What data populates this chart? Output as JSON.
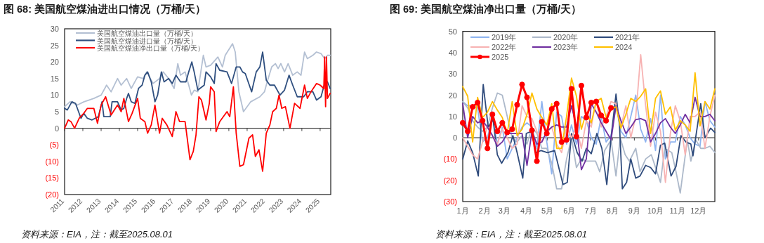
{
  "chart_data": [
    {
      "type": "line",
      "title": "图 68: 美国航空煤油进出口情况（万桶/天）",
      "xlim": [
        "2011-01-01",
        "2025-08-01"
      ],
      "xticks": [
        "2011",
        "2012",
        "2013",
        "2014",
        "2015",
        "2016",
        "2017",
        "2018",
        "2019",
        "2020",
        "2021",
        "2022",
        "2023",
        "2024",
        "2025"
      ],
      "ylim": [
        -20,
        30
      ],
      "yticks": [
        {
          "value": -20,
          "label": "(20)"
        },
        {
          "value": -15,
          "label": "(15)"
        },
        {
          "value": -10,
          "label": "(10)"
        },
        {
          "value": -5,
          "label": "(5)"
        },
        0,
        5,
        10,
        15,
        20,
        25,
        30
      ],
      "legend": "top left",
      "annotations": [
        "资料来源：EIA，注：截至2025.08.01"
      ],
      "series": [
        {
          "name": "美国航空煤油出口量（万桶/天）",
          "color": "#b4c0d3",
          "x": [
            "2011-01-01",
            "2011-04-20",
            "2011-09-13",
            "2012-01-26",
            "2012-08-08",
            "2013-01-01",
            "2013-04-20",
            "2013-07-20",
            "2013-11-25",
            "2014-02-06",
            "2014-05-27",
            "2014-08-26",
            "2015-01-01",
            "2015-04-20",
            "2015-07-02",
            "2015-11-07",
            "2016-03-15",
            "2016-05-27",
            "2016-09-13",
            "2017-01-01",
            "2017-03-15",
            "2017-05-08",
            "2017-08-08",
            "2017-12-14",
            "2018-02-06",
            "2018-04-20",
            "2018-08-08",
            "2018-10-01",
            "2019-01-01",
            "2019-05-27",
            "2019-08-26",
            "2019-10-20",
            "2020-03-15",
            "2020-05-08",
            "2020-07-20",
            "2020-10-20",
            "2021-03-15",
            "2021-09-13",
            "2021-12-14",
            "2022-02-06",
            "2022-05-08",
            "2022-07-20",
            "2022-09-13",
            "2022-11-07",
            "2023-01-19",
            "2023-04-01",
            "2023-07-02",
            "2023-10-01",
            "2023-12-14",
            "2024-02-24",
            "2024-04-20",
            "2024-08-08",
            "2024-10-20",
            "2025-01-19",
            "2025-04-01",
            "2025-05-27",
            "2025-07-20"
          ],
          "values": [
            6.5,
            8,
            7,
            8,
            9,
            10,
            13,
            11,
            15,
            13,
            15,
            12,
            15.5,
            15,
            17,
            13.5,
            15,
            17,
            15,
            12,
            19.5,
            16,
            17,
            10,
            11.5,
            11,
            22,
            18.5,
            19,
            21.5,
            18.5,
            22,
            25.5,
            23,
            11,
            5,
            8,
            9.5,
            11,
            14,
            18.5,
            19.5,
            18,
            19.5,
            17,
            19.5,
            16,
            17,
            16,
            23,
            21,
            22,
            23,
            22.5,
            21,
            22,
            22
          ]
        },
        {
          "name": "美国航空煤油进口量（万桶/天）",
          "color": "#2f4f7f",
          "x": [
            "2011-01-01",
            "2011-02-24",
            "2011-05-27",
            "2011-08-08",
            "2011-11-25",
            "2012-01-19",
            "2012-04-01",
            "2012-07-02",
            "2012-11-07",
            "2013-01-19",
            "2013-02-24",
            "2013-07-02",
            "2013-08-08",
            "2013-11-25",
            "2014-02-06",
            "2014-04-01",
            "2014-05-27",
            "2014-07-02",
            "2014-08-26",
            "2014-11-07",
            "2015-01-19",
            "2015-04-01",
            "2015-05-27",
            "2015-07-20",
            "2015-10-01",
            "2015-12-14",
            "2016-02-06",
            "2016-04-20",
            "2016-06-14",
            "2016-09-13",
            "2016-11-25",
            "2017-02-06",
            "2017-05-08",
            "2017-08-26",
            "2017-10-20",
            "2017-12-21",
            "2018-02-06",
            "2018-04-20",
            "2018-08-26",
            "2018-10-01",
            "2019-01-01",
            "2019-03-15",
            "2019-04-20",
            "2019-07-02",
            "2019-11-25",
            "2020-02-24",
            "2020-05-27",
            "2020-08-08",
            "2020-10-01",
            "2020-11-25",
            "2021-04-01",
            "2021-07-02",
            "2021-09-13",
            "2021-11-07",
            "2022-01-19",
            "2022-04-01",
            "2022-07-02",
            "2022-10-20",
            "2023-01-19",
            "2023-04-20",
            "2023-07-02",
            "2023-10-01",
            "2024-02-06",
            "2024-04-20",
            "2024-08-08",
            "2024-10-20",
            "2025-01-19",
            "2025-04-01",
            "2025-05-27",
            "2025-07-20"
          ],
          "values": [
            6,
            5.5,
            8,
            7.5,
            3,
            4.5,
            3,
            2.5,
            3.5,
            8,
            3.5,
            3.5,
            8,
            8,
            5.5,
            6,
            9,
            10.5,
            8,
            7.5,
            12,
            13,
            16,
            17,
            14,
            8,
            10,
            17,
            14,
            15,
            13.5,
            16,
            14,
            14,
            17,
            20,
            17,
            11.5,
            13,
            17,
            15.5,
            13.5,
            19.5,
            17.5,
            17,
            13.5,
            18.5,
            18.5,
            17,
            16.5,
            11,
            17,
            18.5,
            23,
            14.5,
            13,
            13,
            10,
            11.5,
            16,
            13,
            9.5,
            9.5,
            11,
            11,
            8.5,
            9.5,
            13.5,
            14,
            12
          ]
        },
        {
          "name": "美国航空煤油净出口量（万桶/天）",
          "color": "#ff0000",
          "x": [
            "2011-01-01",
            "2011-03-15",
            "2011-05-08",
            "2011-07-20",
            "2011-10-20",
            "2012-01-19",
            "2012-04-01",
            "2012-08-08",
            "2012-10-20",
            "2013-01-01",
            "2013-04-01",
            "2013-07-20",
            "2013-11-25",
            "2014-02-06",
            "2014-04-01",
            "2014-07-02",
            "2014-09-13",
            "2015-01-01",
            "2015-02-24",
            "2015-05-27",
            "2015-07-20",
            "2015-10-01",
            "2015-12-14",
            "2016-03-15",
            "2016-05-08",
            "2016-08-08",
            "2016-11-25",
            "2017-02-06",
            "2017-04-20",
            "2017-08-08",
            "2017-11-14",
            "2018-01-19",
            "2018-03-15",
            "2018-05-12",
            "2018-07-02",
            "2018-10-01",
            "2018-12-06",
            "2019-01-01",
            "2019-03-15",
            "2019-04-20",
            "2019-07-02",
            "2019-11-25",
            "2020-01-19",
            "2020-04-01",
            "2020-05-27",
            "2020-08-08",
            "2020-10-20",
            "2021-02-06",
            "2021-04-20",
            "2021-06-14",
            "2021-08-26",
            "2021-11-07",
            "2022-01-19",
            "2022-04-01",
            "2022-05-27",
            "2022-08-08",
            "2022-10-01",
            "2022-11-25",
            "2023-02-06",
            "2023-05-08",
            "2023-08-08",
            "2023-11-25",
            "2024-02-24",
            "2024-04-20",
            "2024-07-02",
            "2024-10-20",
            "2025-01-01",
            "2025-03-15",
            "2025-04-01",
            "2025-04-20",
            "2025-05-08",
            "2025-05-27",
            "2025-07-20"
          ],
          "values": [
            0,
            2.5,
            2,
            0,
            3,
            4.5,
            6,
            6,
            1.5,
            7,
            9.5,
            4,
            7,
            5,
            9,
            2,
            4.5,
            9,
            3,
            2,
            -1.5,
            1,
            7,
            -1.5,
            3,
            1,
            -2.5,
            5,
            2,
            2,
            -9.5,
            -7,
            -2,
            9.5,
            8.5,
            2.5,
            7.5,
            12.5,
            11,
            -1,
            2,
            5,
            3.5,
            12.5,
            -1.5,
            -11.5,
            -11,
            -3,
            -2,
            -8.5,
            -6.5,
            -13,
            -1.5,
            1,
            5,
            6,
            10,
            6,
            6.5,
            0,
            7.5,
            6,
            13,
            9,
            11,
            13.5,
            13,
            12,
            21.5,
            6.5,
            21.5,
            9,
            10.5
          ]
        }
      ]
    },
    {
      "type": "line",
      "title": "图 69: 美国航空煤油净出口量（万桶/天）",
      "x": [
        "--01-01",
        "--01-08",
        "--01-15",
        "--01-22",
        "--01-29",
        "--02-05",
        "--02-12",
        "--02-19",
        "--02-26",
        "--03-05",
        "--03-12",
        "--03-19",
        "--03-26",
        "--04-02",
        "--04-09",
        "--04-16",
        "--04-23",
        "--04-30",
        "--05-07",
        "--05-14",
        "--05-21",
        "--05-28",
        "--06-04",
        "--06-11",
        "--06-18",
        "--06-25",
        "--07-02",
        "--07-09",
        "--07-16",
        "--07-23",
        "--07-30",
        "--08-06",
        "--08-13",
        "--08-20",
        "--08-27",
        "--09-03",
        "--09-10",
        "--09-17",
        "--09-24",
        "--10-01",
        "--10-08",
        "--10-15",
        "--10-22",
        "--10-29",
        "--11-05",
        "--11-12",
        "--11-19",
        "--11-26",
        "--12-03",
        "--12-10",
        "--12-17",
        "--12-24"
      ],
      "xlim": [
        "--01-01",
        "--12-24"
      ],
      "xticks": [
        {
          "value": "--01-01",
          "label": "1月"
        },
        {
          "value": "--02-01",
          "label": "2月"
        },
        {
          "value": "--03-01",
          "label": "3月"
        },
        {
          "value": "--04-01",
          "label": "4月"
        },
        {
          "value": "--05-01",
          "label": "5月"
        },
        {
          "value": "--06-01",
          "label": "6月"
        },
        {
          "value": "--07-01",
          "label": "7月"
        },
        {
          "value": "--08-01",
          "label": "8月"
        },
        {
          "value": "--09-01",
          "label": "9月"
        },
        {
          "value": "--10-01",
          "label": "10月"
        },
        {
          "value": "--11-01",
          "label": "11月"
        },
        {
          "value": "--12-01",
          "label": "12月"
        }
      ],
      "ylim": [
        -30,
        50
      ],
      "yticks": [
        {
          "value": -30,
          "label": "(30)"
        },
        {
          "value": -20,
          "label": "(20)"
        },
        {
          "value": -10,
          "label": "(10)"
        },
        0,
        10,
        20,
        30,
        40,
        50
      ],
      "legend": "top left",
      "annotations": [
        "资料来源：EIA，注：截至2025.08.01"
      ],
      "series": [
        {
          "name": "2019年",
          "color": "#8fb4f0",
          "values": [
            17,
            15,
            15,
            14,
            -2,
            0,
            10,
            -3,
            5,
            -10,
            -5,
            0,
            5,
            7,
            5,
            -5,
            17,
            -2,
            -17,
            12,
            10,
            -3,
            6,
            -3,
            10,
            8,
            0,
            -3,
            10,
            -2,
            1,
            15,
            3,
            0,
            10,
            20,
            4,
            -2,
            9,
            -6,
            20,
            -10,
            -2,
            -2,
            10,
            6,
            0,
            -3,
            -4,
            17,
            8,
            5
          ]
        },
        {
          "name": "2020年",
          "color": "#adb9ca",
          "x": [
            "--01-01",
            "--01-08",
            "--01-15",
            "--01-22",
            "--01-29",
            "--02-05",
            "--02-12",
            "--02-19",
            "--02-26",
            "--03-05",
            "--03-12",
            "--03-19",
            "--03-26",
            "--04-02",
            "--04-09",
            "--04-16",
            "--04-23",
            "--04-30",
            "--05-07",
            "--05-14",
            "--05-21",
            "--05-28",
            "--06-04",
            "--06-11",
            "--06-18",
            "--06-25",
            "--07-02",
            "--07-08",
            "--07-14",
            "--07-21",
            "--07-30",
            "--08-06",
            "--08-12",
            "--08-19",
            "--08-25",
            "--09-03",
            "--09-09",
            "--09-17",
            "--09-25",
            "--10-08",
            "--10-14",
            "--10-24",
            "--10-30",
            "--11-05",
            "--11-15",
            "--11-20",
            "--11-27",
            "--12-04",
            "--12-10",
            "--12-17",
            "--12-24"
          ],
          "values": [
            17,
            14,
            8,
            5,
            3,
            5,
            14,
            21,
            20,
            10,
            0,
            -2,
            1,
            -3,
            5,
            2,
            -5,
            -5,
            -12,
            -24,
            -24,
            -10,
            0,
            -14,
            -10,
            -11,
            -11,
            -11,
            -16,
            -6,
            -1,
            -18,
            0,
            -8,
            -11,
            -5,
            -16,
            -10,
            -8,
            -21,
            -5,
            -7,
            -16,
            -26,
            -1,
            -11,
            -1,
            -5,
            -5,
            -4,
            -7
          ]
        },
        {
          "name": "2021年",
          "color": "#2f4b7c",
          "x": [
            "--01-01",
            "--01-08",
            "--01-15",
            "--01-23",
            "--01-30",
            "--02-06",
            "--02-13",
            "--02-19",
            "--02-25",
            "--03-06",
            "--03-13",
            "--03-19",
            "--03-27",
            "--04-01",
            "--04-08",
            "--04-15",
            "--04-22",
            "--05-01",
            "--05-11",
            "--05-23",
            "--05-29",
            "--06-04",
            "--06-12",
            "--06-19",
            "--06-25",
            "--07-02",
            "--07-10",
            "--07-17",
            "--07-24",
            "--07-30",
            "--08-06",
            "--08-11",
            "--08-15",
            "--08-21",
            "--08-27",
            "--09-03",
            "--09-09",
            "--09-17",
            "--09-24",
            "--10-01",
            "--10-08",
            "--10-14",
            "--10-23",
            "--10-30",
            "--11-06",
            "--11-13",
            "--11-20",
            "--11-23",
            "--12-04",
            "--12-10",
            "--12-18",
            "--12-24"
          ],
          "values": [
            -10,
            -1.5,
            -7,
            -18,
            25,
            5,
            8.5,
            -8,
            -12,
            -7,
            1,
            -7,
            -19,
            2,
            3,
            -7,
            -6,
            -7,
            -6,
            -22,
            -21,
            2,
            -7,
            -11,
            -5,
            -7.5,
            2,
            -5,
            -22,
            0,
            20.5,
            6,
            -24,
            -21,
            -10,
            -19,
            -18,
            -13,
            -14,
            -17,
            -3.5,
            -2.5,
            -18,
            -13.5,
            1,
            -2,
            -3,
            -8.5,
            16,
            0,
            4.5,
            2.5
          ]
        },
        {
          "name": "2022年",
          "color": "#f7b3b3",
          "values": [
            0,
            -4,
            -8,
            -10,
            -2,
            5,
            1,
            -3,
            4,
            0,
            -5,
            -3,
            15,
            10,
            9,
            3,
            -2,
            2,
            5,
            -3,
            -7,
            5,
            0,
            5,
            -5,
            8,
            5,
            18,
            5,
            10,
            17,
            16,
            5,
            15,
            0,
            10,
            39,
            15,
            -4,
            12,
            3,
            -21,
            2,
            15,
            8,
            -8,
            10,
            10,
            12,
            -5,
            10,
            20
          ]
        },
        {
          "name": "2023年",
          "color": "#7030a0",
          "values": [
            16,
            0,
            10,
            7,
            8,
            5,
            1,
            -4,
            -2,
            2,
            2,
            2,
            2,
            -13,
            3,
            -3,
            -2,
            3,
            5,
            6,
            5,
            5,
            15,
            5,
            -15,
            -10,
            16,
            12,
            7,
            3,
            -1,
            15,
            8,
            2,
            5,
            8.5,
            9,
            8,
            -2,
            2,
            7,
            9,
            5,
            2,
            6,
            11,
            7,
            19,
            10,
            10,
            11,
            8
          ]
        },
        {
          "name": "2024",
          "color": "#ffc000",
          "values": [
            24,
            19.5,
            -2,
            19,
            9.5,
            12,
            17,
            13,
            9.5,
            2,
            17,
            1,
            4,
            11,
            21,
            13.5,
            9.5,
            6,
            16,
            -5,
            -5,
            10,
            28,
            19.5,
            4,
            12,
            7,
            17,
            18.5,
            9.5,
            13.5,
            14.5,
            4.5,
            11,
            18.5,
            17,
            19.5,
            23,
            2,
            18.5,
            22,
            11,
            14.5,
            3.5,
            8,
            6,
            3,
            30.5,
            5.5,
            17,
            13.5,
            23
          ]
        },
        {
          "name": "2025",
          "color": "#ff0000",
          "marker": "circle",
          "x": [
            "--01-01",
            "--01-08",
            "--01-15",
            "--01-22",
            "--01-29",
            "--02-05",
            "--02-12",
            "--02-19",
            "--02-26",
            "--03-05",
            "--03-12",
            "--03-19",
            "--03-26",
            "--04-02",
            "--04-09",
            "--04-16",
            "--04-23",
            "--04-30",
            "--05-07",
            "--05-14",
            "--05-21",
            "--05-28",
            "--06-04",
            "--06-11",
            "--06-18",
            "--06-25",
            "--07-02",
            "--07-09",
            "--07-16",
            "--07-23",
            "--07-30"
          ],
          "values": [
            7,
            3,
            14.5,
            16.5,
            8,
            -5,
            11,
            3,
            7,
            2.5,
            4,
            15.5,
            25,
            19,
            3.5,
            -11,
            7.5,
            2,
            13.5,
            16,
            -2,
            -1,
            23,
            0.5,
            24.5,
            9.5,
            16.5,
            17,
            10.5,
            8,
            14
          ]
        }
      ]
    }
  ]
}
